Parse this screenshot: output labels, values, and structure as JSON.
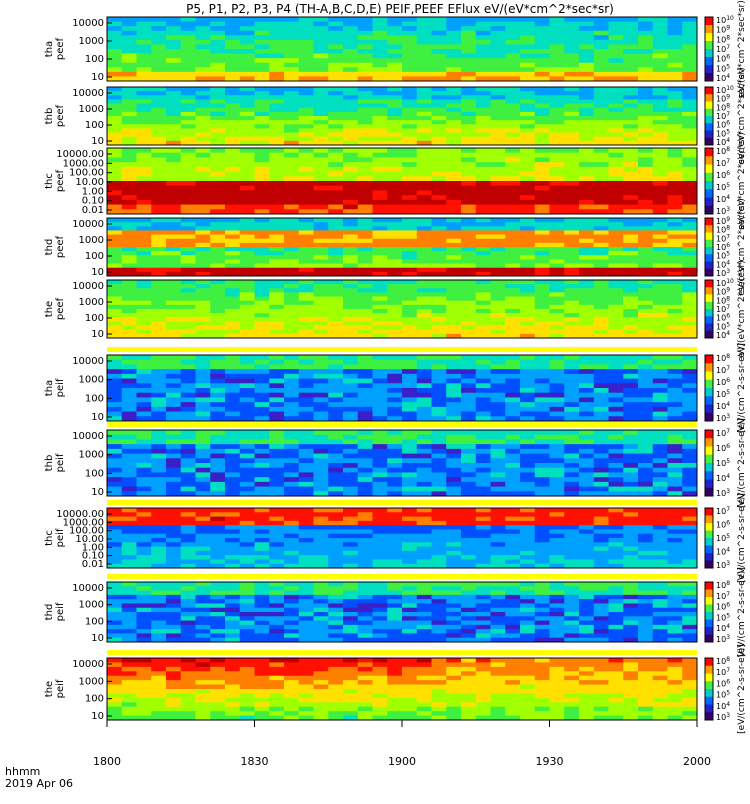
{
  "title": "P5, P1, P2, P3, P4 (TH-A,B,C,D,E) PEIF,PEEF EFlux eV/(eV*cm^2*sec*sr)",
  "footer": {
    "line1": "hhmm",
    "line2": "2019 Apr 06"
  },
  "x_axis": {
    "ticks": [
      "1800",
      "1830",
      "1900",
      "1930",
      "2000"
    ]
  },
  "colorbar_unit_label": "eV/(eV*cm^2*sec*sr)",
  "colorbar_unit_label_peif": "[eV/(cm^2-s-sr-eV)]",
  "chart_data": [
    {
      "type": "heatmap",
      "panel": "tha peef",
      "ylabel": [
        "tha",
        "peef"
      ],
      "yticks": [
        "10",
        "100",
        "1000",
        "10000"
      ],
      "colorbar_ticks": [
        "10^4",
        "10^5",
        "10^6",
        "10^7",
        "10^8",
        "10^9",
        "10^10"
      ]
    },
    {
      "type": "heatmap",
      "panel": "thb peef",
      "ylabel": [
        "thb",
        "peef"
      ],
      "yticks": [
        "10",
        "100",
        "1000",
        "10000"
      ],
      "colorbar_ticks": [
        "10^4",
        "10^5",
        "10^6",
        "10^7",
        "10^8",
        "10^9",
        "10^10"
      ]
    },
    {
      "type": "heatmap",
      "panel": "thc peef",
      "ylabel": [
        "thc",
        "peef"
      ],
      "yticks": [
        "0.01",
        "0.10",
        "1.00",
        "10.00",
        "100.00",
        "1000.00",
        "10000.00"
      ],
      "colorbar_ticks": [
        "10^3",
        "10^4",
        "10^5",
        "10^6",
        "10^7",
        "10^8"
      ]
    },
    {
      "type": "heatmap",
      "panel": "thd peef",
      "ylabel": [
        "thd",
        "peef"
      ],
      "yticks": [
        "10",
        "100",
        "1000",
        "10000"
      ],
      "colorbar_ticks": [
        "10^3",
        "10^4",
        "10^5",
        "10^6",
        "10^7",
        "10^8",
        "10^9"
      ]
    },
    {
      "type": "heatmap",
      "panel": "the peef",
      "ylabel": [
        "the",
        "peef"
      ],
      "yticks": [
        "10",
        "100",
        "1000",
        "10000"
      ],
      "colorbar_ticks": [
        "10^4",
        "10^5",
        "10^6",
        "10^7",
        "10^8",
        "10^9",
        "10^10"
      ]
    },
    {
      "type": "heatmap",
      "panel": "tha peif",
      "ylabel": [
        "tha",
        "peif"
      ],
      "yticks": [
        "10",
        "100",
        "1000",
        "10000"
      ],
      "colorbar_ticks": [
        "10^3",
        "10^4",
        "10^5",
        "10^6",
        "10^7",
        "10^8"
      ]
    },
    {
      "type": "heatmap",
      "panel": "thb peif",
      "ylabel": [
        "thb",
        "peif"
      ],
      "yticks": [
        "10",
        "100",
        "1000",
        "10000"
      ],
      "colorbar_ticks": [
        "10^3",
        "10^4",
        "10^5",
        "10^6",
        "10^7"
      ]
    },
    {
      "type": "heatmap",
      "panel": "thc peif",
      "ylabel": [
        "thc",
        "peif"
      ],
      "yticks": [
        "0.01",
        "0.10",
        "1.00",
        "10.00",
        "100.00",
        "1000.00",
        "10000.00"
      ],
      "colorbar_ticks": [
        "10^3",
        "10^4",
        "10^5",
        "10^6",
        "10^7"
      ]
    },
    {
      "type": "heatmap",
      "panel": "thd peif",
      "ylabel": [
        "thd",
        "peif"
      ],
      "yticks": [
        "10",
        "100",
        "1000",
        "10000"
      ],
      "colorbar_ticks": [
        "10^3",
        "10^4",
        "10^5",
        "10^6",
        "10^7",
        "10^8"
      ]
    },
    {
      "type": "heatmap",
      "panel": "the peif",
      "ylabel": [
        "the",
        "peif"
      ],
      "yticks": [
        "10",
        "100",
        "1000",
        "10000"
      ],
      "colorbar_ticks": [
        "10^3",
        "10^4",
        "10^5",
        "10^6",
        "10^7",
        "10^8"
      ]
    }
  ],
  "colors": {
    "scale": [
      "#2a004f",
      "#3a20c8",
      "#0050ff",
      "#00a0ff",
      "#00e0c0",
      "#40f040",
      "#a0ff00",
      "#ffe000",
      "#ff8000",
      "#ff1000",
      "#c00000"
    ],
    "bar": [
      "#ff0000",
      "#ff9900",
      "#ffff00",
      "#44ee44",
      "#00cccc",
      "#0066ff",
      "#2222cc",
      "#330066"
    ]
  }
}
